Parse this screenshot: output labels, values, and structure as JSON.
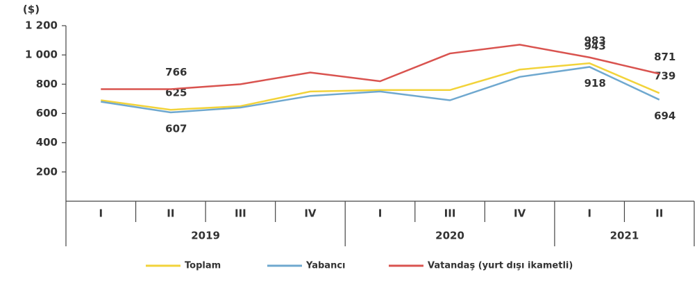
{
  "chart_data": {
    "type": "line",
    "ylabel": "($)",
    "category_groups": [
      {
        "name": "2019",
        "categories": [
          "I",
          "II",
          "III",
          "IV"
        ]
      },
      {
        "name": "2020",
        "categories": [
          "I",
          "III",
          "IV"
        ]
      },
      {
        "name": "2021",
        "categories": [
          "I",
          "II"
        ]
      }
    ],
    "ylim": [
      0,
      1200
    ],
    "yticks": [
      200,
      400,
      600,
      800,
      {
        "value": 1000,
        "label": "1 000"
      },
      {
        "value": 1200,
        "label": "1 200"
      }
    ],
    "series": [
      {
        "name": "Toplam",
        "color": "#f2d33a",
        "values": [
          690,
          625,
          650,
          750,
          760,
          760,
          900,
          943,
          739
        ],
        "value_labels": [
          null,
          "625",
          null,
          null,
          null,
          null,
          null,
          "943",
          "739"
        ]
      },
      {
        "name": "Yabancı",
        "color": "#6fa8cf",
        "values": [
          680,
          607,
          640,
          720,
          750,
          690,
          850,
          918,
          694
        ],
        "value_labels": [
          null,
          "607",
          null,
          null,
          null,
          null,
          null,
          "918",
          "694"
        ]
      },
      {
        "name": "Vatandaş (yurt dışı ikametli)",
        "color": "#d9534f",
        "values": [
          766,
          766,
          800,
          880,
          820,
          1010,
          1070,
          983,
          871
        ],
        "value_labels": [
          null,
          "766",
          null,
          null,
          null,
          null,
          null,
          "983",
          "871"
        ]
      }
    ]
  }
}
